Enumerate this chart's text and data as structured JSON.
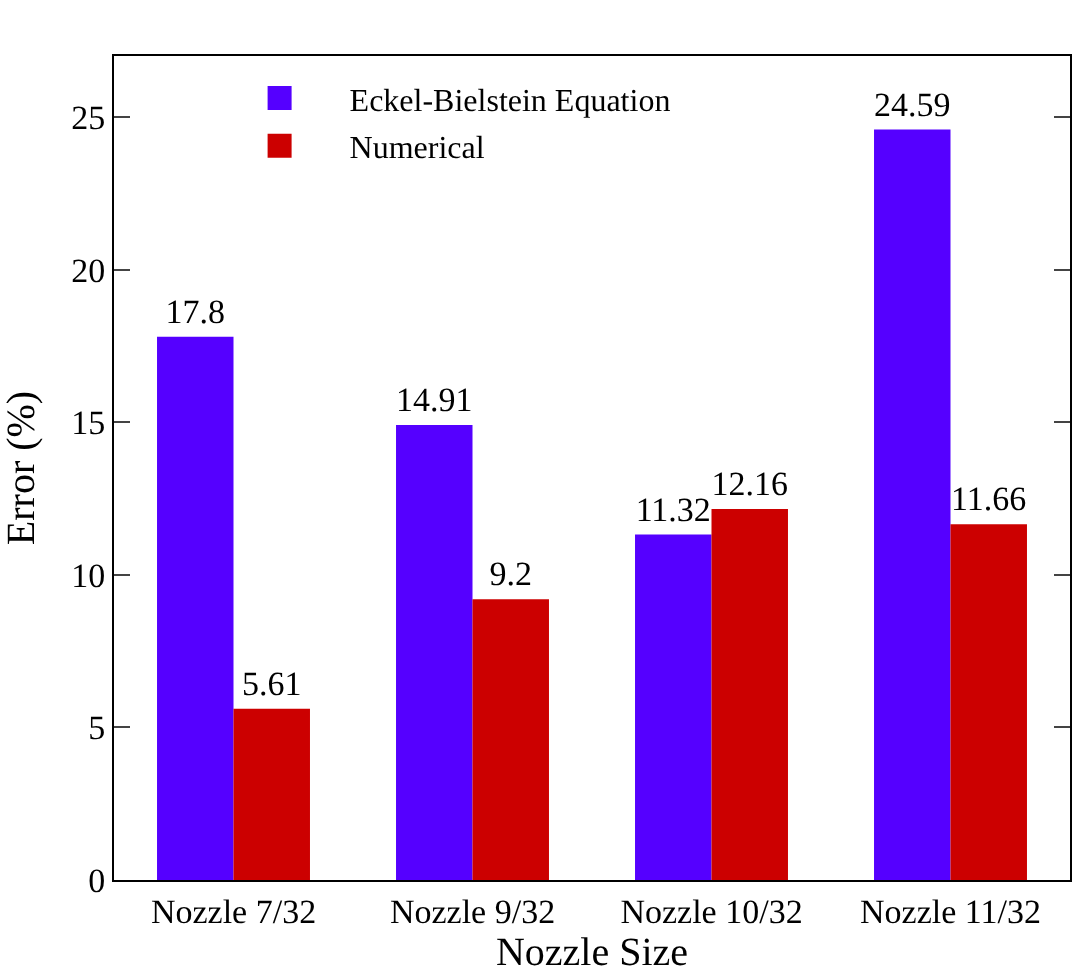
{
  "chart_data": {
    "type": "bar",
    "xlabel": "Nozzle Size",
    "ylabel": "Error (%)",
    "categories": [
      "Nozzle 7/32",
      "Nozzle 9/32",
      "Nozzle 10/32",
      "Nozzle 11/32"
    ],
    "series": [
      {
        "name": "Eckel-Bielstein Equation",
        "color": "#5500ff",
        "values": [
          17.8,
          14.91,
          11.32,
          24.59
        ]
      },
      {
        "name": "Numerical",
        "color": "#cc0000",
        "values": [
          5.61,
          9.2,
          12.16,
          11.66
        ]
      }
    ],
    "ylim": [
      0,
      27
    ],
    "yticks": [
      0,
      5,
      10,
      15,
      20,
      25
    ],
    "data_labels": true,
    "legend": "top left"
  }
}
